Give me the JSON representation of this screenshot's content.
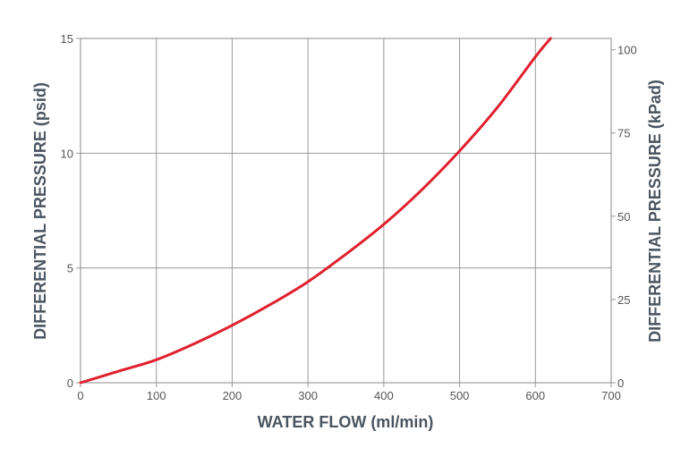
{
  "chart_data": {
    "type": "line",
    "xlabel": "WATER FLOW (ml/min)",
    "ylabel": "DIFFERENTIAL PRESSURE (psid)",
    "y2label": "DIFFERENTIAL PRESSURE (kPad)",
    "xlim": [
      0,
      700
    ],
    "ylim": [
      0,
      15
    ],
    "y2lim": [
      0,
      103.4
    ],
    "x_ticks": [
      0,
      100,
      200,
      300,
      400,
      500,
      600,
      700
    ],
    "y_ticks": [
      0,
      5,
      10,
      15
    ],
    "y2_ticks": [
      0,
      25,
      50,
      75,
      100
    ],
    "grid": true,
    "line_color": "#e0202e",
    "series": [
      {
        "x": [
          0,
          50,
          100,
          150,
          200,
          250,
          300,
          350,
          400,
          450,
          500,
          550,
          600,
          620
        ],
        "y": [
          0,
          0.5,
          1.0,
          1.7,
          2.5,
          3.4,
          4.4,
          5.6,
          6.9,
          8.4,
          10.1,
          12.0,
          14.2,
          15.0
        ]
      }
    ]
  }
}
